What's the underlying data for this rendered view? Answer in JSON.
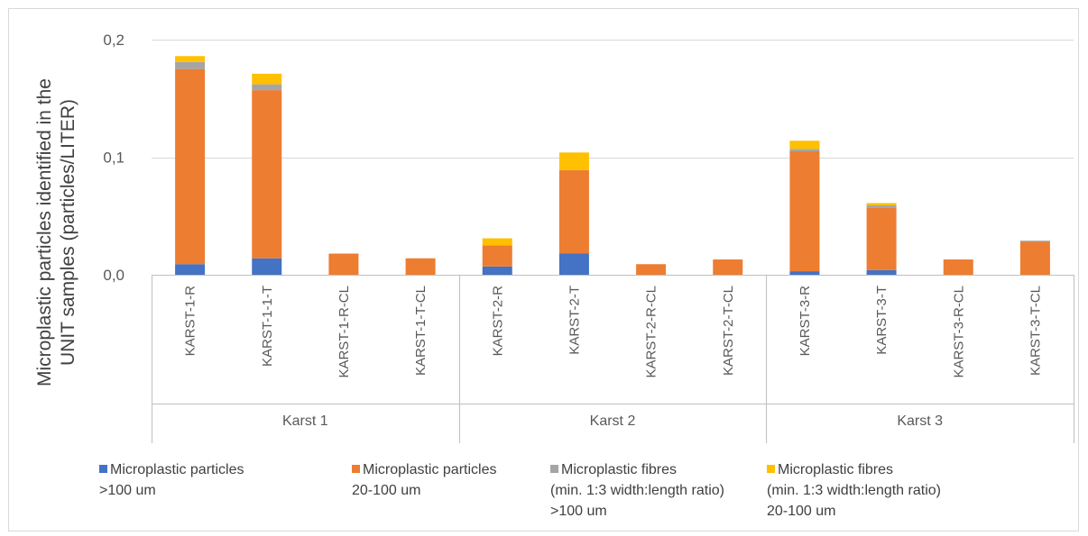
{
  "chart_data": {
    "type": "bar",
    "stacked": true,
    "ylabel_lines": [
      "Microplastic particles identified in the",
      "UNIT samples (particles/LITER)"
    ],
    "ylim": [
      0,
      0.2
    ],
    "yticks": [
      0,
      0.1,
      0.2
    ],
    "ytick_labels": [
      "0,0",
      "0,1",
      "0,2"
    ],
    "grid": true,
    "legend_position": "bottom",
    "groups": [
      {
        "label": "Karst 1",
        "count": 4
      },
      {
        "label": "Karst 2",
        "count": 4
      },
      {
        "label": "Karst 3",
        "count": 4
      }
    ],
    "categories": [
      "KARST-1-R",
      "KARST-1-1-T",
      "KARST-1-R-CL",
      "KARST-1-T-CL",
      "KARST-2-R",
      "KARST-2-T",
      "KARST-2-R-CL",
      "KARST-2-T-CL",
      "KARST-3-R",
      "KARST-3-T",
      "KARST-3-R-CL",
      "KARST-3-T-CL"
    ],
    "series": [
      {
        "name_lines": [
          "Microplastic particles",
          ">100 um"
        ],
        "color": "#4472C4",
        "values": [
          0.009,
          0.014,
          0,
          0,
          0.007,
          0.018,
          0,
          0,
          0.003,
          0.004,
          0,
          0
        ]
      },
      {
        "name_lines": [
          "Microplastic particles",
          "20-100 um"
        ],
        "color": "#ED7D31",
        "values": [
          0.166,
          0.143,
          0.018,
          0.014,
          0.018,
          0.071,
          0.009,
          0.013,
          0.102,
          0.053,
          0.013,
          0.028
        ]
      },
      {
        "name_lines": [
          "Microplastic fibres",
          "(min. 1:3 width:length ratio)",
          ">100 um"
        ],
        "color": "#A5A5A5",
        "values": [
          0.006,
          0.005,
          0,
          0,
          0,
          0,
          0,
          0,
          0.002,
          0.002,
          0,
          0.001
        ]
      },
      {
        "name_lines": [
          "Microplastic fibres",
          "(min. 1:3 width:length ratio)",
          "20-100 um"
        ],
        "color": "#FFC000",
        "values": [
          0.005,
          0.009,
          0,
          0,
          0.006,
          0.015,
          0,
          0,
          0.007,
          0.002,
          0,
          0
        ]
      }
    ]
  }
}
